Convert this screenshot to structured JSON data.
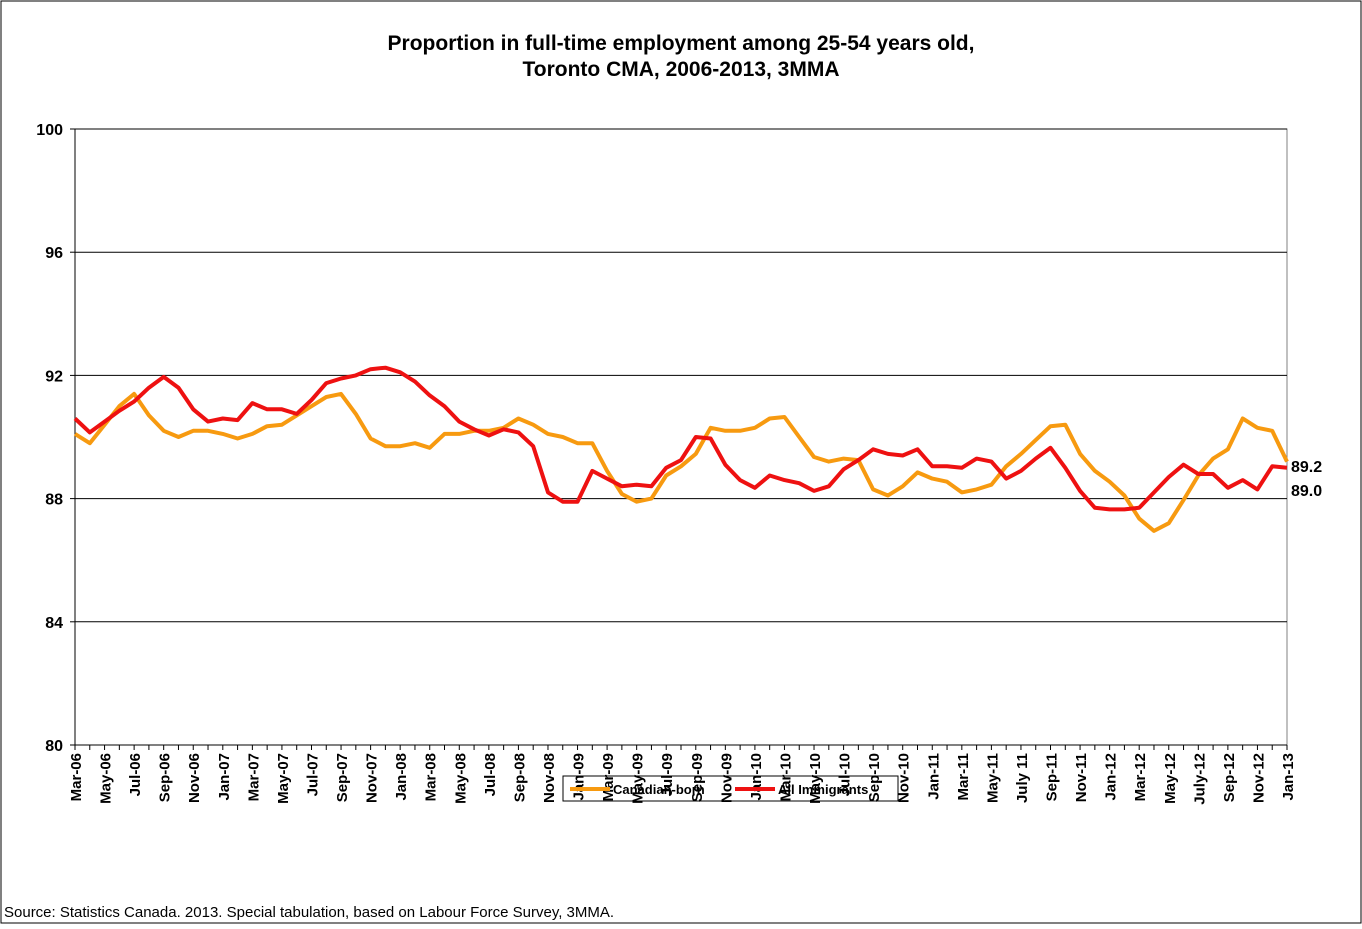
{
  "chart_data": {
    "type": "line",
    "title": "Proportion in full-time employment among 25-54 years old,",
    "subtitle": "Toronto CMA, 2006-2013, 3MMA",
    "source": "Source: Statistics Canada. 2013. Special tabulation, based on Labour Force Survey, 3MMA.",
    "categories": [
      "Mar-06",
      null,
      "May-06",
      null,
      "Jul-06",
      null,
      "Sep-06",
      null,
      "Nov-06",
      null,
      "Jan-07",
      null,
      "Mar-07",
      null,
      "May-07",
      null,
      "Jul-07",
      null,
      "Sep-07",
      null,
      "Nov-07",
      null,
      "Jan-08",
      null,
      "Mar-08",
      null,
      "May-08",
      null,
      "Jul-08",
      null,
      "Sep-08",
      null,
      "Nov-08",
      null,
      "Jan-09",
      null,
      "Mar-09",
      null,
      "May-09",
      null,
      "Jul-09",
      null,
      "Sep-09",
      null,
      "Nov-09",
      null,
      "Jan-10",
      null,
      "Mar-10",
      null,
      "May-10",
      null,
      "Jul-10",
      null,
      "Sep-10",
      null,
      "Nov-10",
      null,
      "Jan-11",
      null,
      "Mar-11",
      null,
      "May-11",
      null,
      "July 11",
      null,
      "Sep-11",
      null,
      "Nov-11",
      null,
      "Jan-12",
      null,
      "Mar-12",
      null,
      "May-12",
      null,
      "July-12",
      null,
      "Sep-12",
      null,
      "Nov-12",
      null,
      "Jan-13"
    ],
    "series": [
      {
        "name": "Canadian-born",
        "color": "#f79a10",
        "values": [
          90.1,
          89.8,
          90.4,
          91.0,
          91.4,
          90.7,
          90.2,
          90.0,
          90.2,
          90.2,
          90.1,
          89.95,
          90.1,
          90.35,
          90.4,
          90.7,
          91.0,
          91.3,
          91.4,
          90.75,
          89.95,
          89.7,
          89.7,
          89.8,
          89.65,
          90.1,
          90.1,
          90.2,
          90.2,
          90.3,
          90.6,
          90.4,
          90.1,
          90.0,
          89.8,
          89.8,
          88.9,
          88.15,
          87.9,
          88.0,
          88.75,
          89.05,
          89.45,
          90.3,
          90.2,
          90.2,
          90.3,
          90.6,
          90.65,
          90.0,
          89.35,
          89.2,
          89.3,
          89.25,
          88.3,
          88.1,
          88.4,
          88.85,
          88.65,
          88.55,
          88.2,
          88.3,
          88.45,
          89.05,
          89.45,
          89.9,
          90.35,
          90.4,
          89.45,
          88.9,
          88.55,
          88.1,
          87.35,
          86.95,
          87.2,
          87.95,
          88.75,
          89.3,
          89.6,
          90.6,
          90.3,
          90.2,
          89.2
        ]
      },
      {
        "name": "All Immigrants",
        "color": "#ee1111",
        "values": [
          90.6,
          90.15,
          90.5,
          90.85,
          91.15,
          91.6,
          91.95,
          91.6,
          90.9,
          90.5,
          90.6,
          90.55,
          91.1,
          90.9,
          90.9,
          90.75,
          91.2,
          91.75,
          91.9,
          92.0,
          92.2,
          92.25,
          92.1,
          91.8,
          91.35,
          91.0,
          90.5,
          90.25,
          90.05,
          90.25,
          90.15,
          89.7,
          88.2,
          87.9,
          87.9,
          88.9,
          88.65,
          88.4,
          88.45,
          88.4,
          89.0,
          89.25,
          90.0,
          89.95,
          89.1,
          88.6,
          88.35,
          88.75,
          88.6,
          88.5,
          88.25,
          88.4,
          88.95,
          89.25,
          89.6,
          89.45,
          89.4,
          89.6,
          89.05,
          89.05,
          89.0,
          89.3,
          89.2,
          88.65,
          88.9,
          89.3,
          89.65,
          89.0,
          88.25,
          87.7,
          87.65,
          87.65,
          87.7,
          88.2,
          88.7,
          89.1,
          88.8,
          88.8,
          88.35,
          88.6,
          88.3,
          89.05,
          89.0
        ]
      }
    ],
    "end_labels": [
      "89.2",
      "89.0"
    ],
    "ylim": [
      80,
      100
    ],
    "yticks": [
      80,
      84,
      88,
      92,
      96,
      100
    ],
    "grid": true
  }
}
